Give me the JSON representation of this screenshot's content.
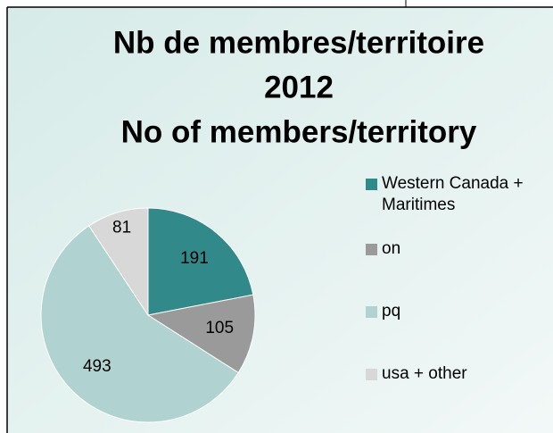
{
  "chart_data": {
    "type": "pie",
    "title": [
      "Nb de membres/territoire",
      "2012",
      "No of members/territory"
    ],
    "categories": [
      "Western Canada + Maritimes",
      "on",
      "pq",
      "usa + other"
    ],
    "values": [
      191,
      105,
      493,
      81
    ],
    "colors": [
      "#31898a",
      "#9a9a9a",
      "#b0d3d1",
      "#d8d8d8"
    ],
    "legend": "right"
  }
}
